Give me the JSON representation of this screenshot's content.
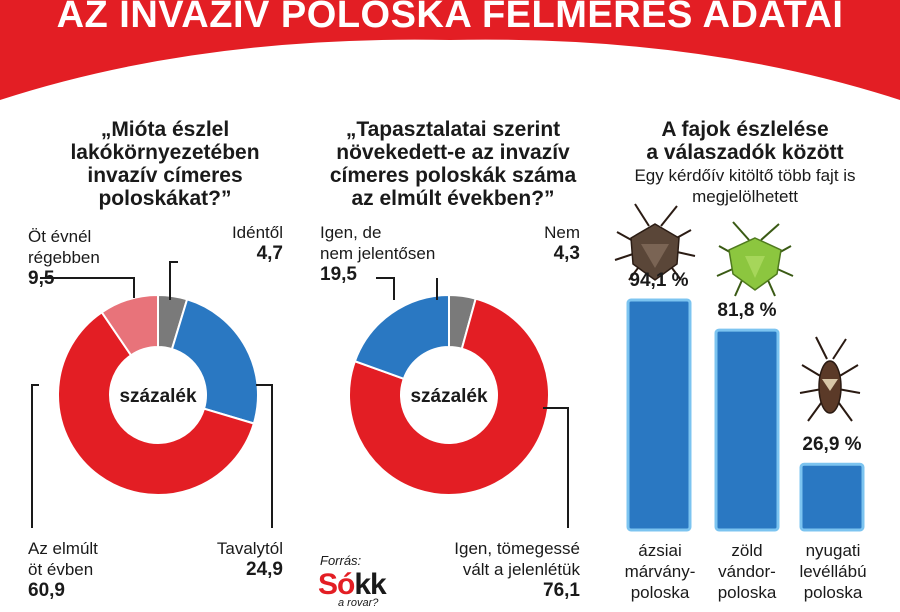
{
  "title": "AZ INVAZÍV POLOSKA FELMÉRÉS ADATAI",
  "colors": {
    "red": "#e31e24",
    "blue": "#2a78c2",
    "gray": "#7a7a7a",
    "pink": "#e8737a",
    "banner": "#e31e24"
  },
  "chart_data": [
    {
      "type": "pie",
      "question": [
        "„Mióta észlel",
        "lakókörnyezetében",
        "invazív címeres",
        "poloskákat?”"
      ],
      "center_label": "százalék",
      "slices": [
        {
          "label": [
            "Idéntől"
          ],
          "value": 4.7,
          "value_text": "4,7",
          "color": "#7a7a7a"
        },
        {
          "label": [
            "Tavalytól"
          ],
          "value": 24.9,
          "value_text": "24,9",
          "color": "#2a78c2"
        },
        {
          "label": [
            "Az elmúlt",
            "öt évben"
          ],
          "value": 60.9,
          "value_text": "60,9",
          "color": "#e31e24"
        },
        {
          "label": [
            "Öt évnél",
            "régebben"
          ],
          "value": 9.5,
          "value_text": "9,5",
          "color": "#e8737a"
        }
      ]
    },
    {
      "type": "pie",
      "question": [
        "„Tapasztalatai szerint",
        "növekedett-e az invazív",
        "címeres poloskák száma",
        "az elmúlt években?”"
      ],
      "center_label": "százalék",
      "slices": [
        {
          "label": [
            "Nem"
          ],
          "value": 4.3,
          "value_text": "4,3",
          "color": "#7a7a7a"
        },
        {
          "label": [
            "Igen, tömegessé",
            "vált a jelenlétük"
          ],
          "value": 76.1,
          "value_text": "76,1",
          "color": "#e31e24"
        },
        {
          "label": [
            "Igen, de",
            "nem jelentősen"
          ],
          "value": 19.5,
          "value_text": "19,5",
          "color": "#2a78c2"
        }
      ]
    },
    {
      "type": "bar",
      "title": [
        "A fajok észlelése",
        "a válaszadók között"
      ],
      "subtitle": [
        "Egy kérdőív kitöltő több fajt is",
        "megjelölhetett"
      ],
      "categories": [
        [
          "ázsiai",
          "márvány-",
          "poloska"
        ],
        [
          "zöld",
          "vándor-",
          "poloska"
        ],
        [
          "nyugati",
          "levéllábú",
          "poloska"
        ]
      ],
      "values": [
        94.1,
        81.8,
        26.9
      ],
      "value_labels": [
        "94,1 %",
        "81,8 %",
        "26,9 %"
      ],
      "ylim": [
        0,
        100
      ],
      "color": "#2a78c2"
    }
  ],
  "source": {
    "label": "Forrás:",
    "logo_main_red": "Só",
    "logo_main_dark": "kk",
    "logo_sub": "a rovar?"
  }
}
